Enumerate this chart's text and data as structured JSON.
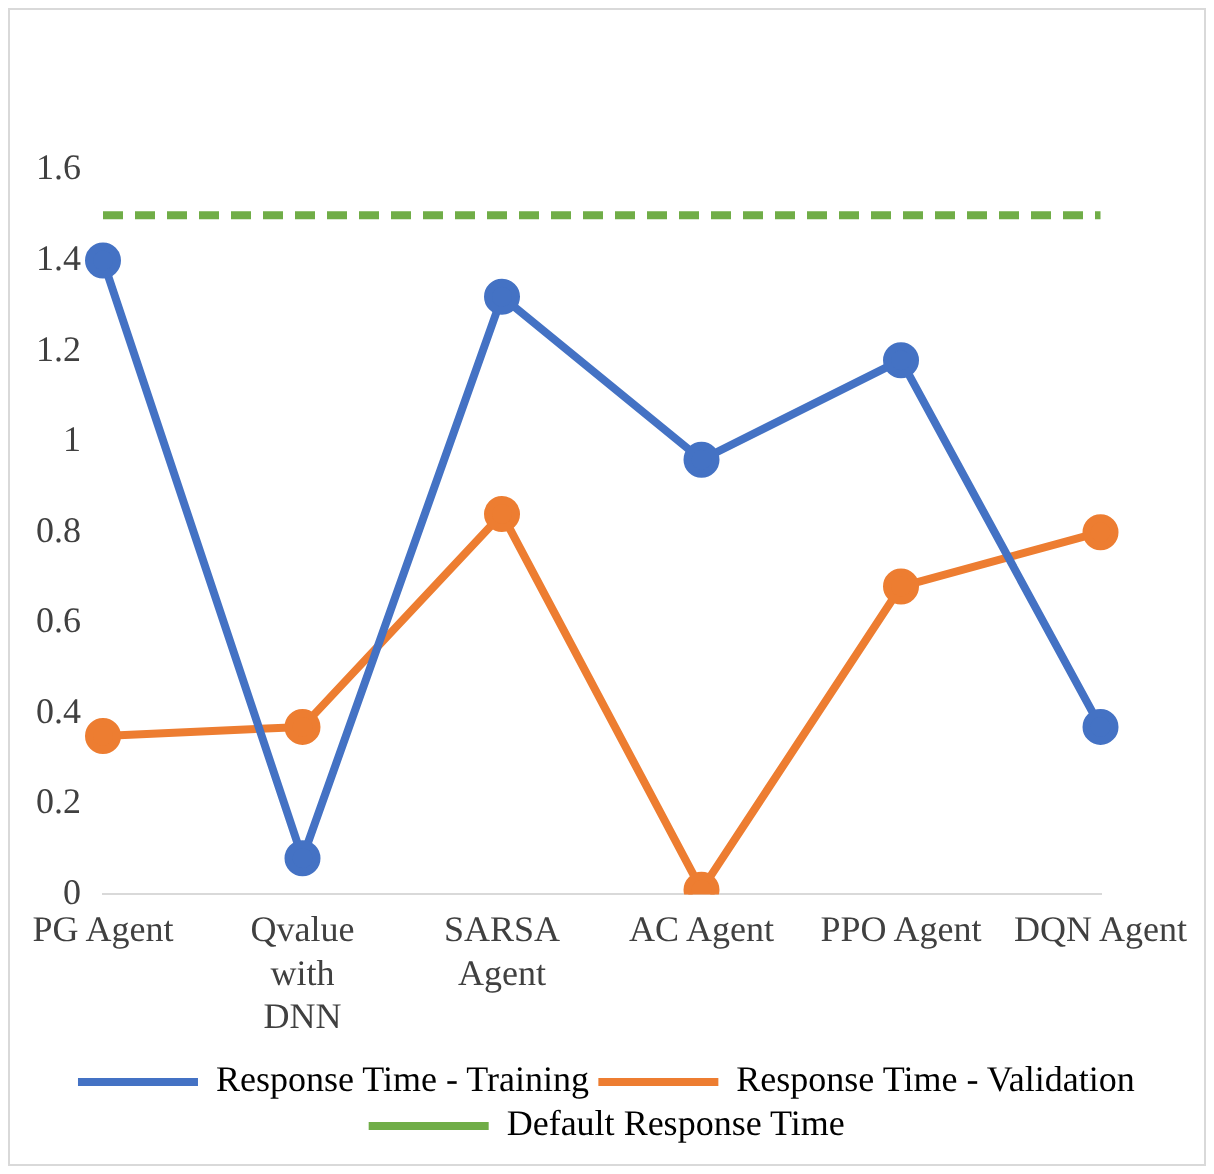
{
  "chart_data": {
    "type": "line",
    "categories": [
      "PG Agent",
      "Qvalue with DNN",
      "SARSA Agent",
      "AC Agent",
      "PPO Agent",
      "DQN Agent"
    ],
    "series": [
      {
        "name": "Response Time - Training",
        "color": "#4472c4",
        "values": [
          1.4,
          0.08,
          1.32,
          0.96,
          1.18,
          0.37
        ],
        "marker": "circle"
      },
      {
        "name": "Response Time - Validation",
        "color": "#ed7d31",
        "values": [
          0.35,
          0.37,
          0.84,
          0.01,
          0.68,
          0.8
        ],
        "marker": "circle"
      },
      {
        "name": "Default Response Time",
        "color": "#70ad47",
        "values": [
          1.5,
          1.5,
          1.5,
          1.5,
          1.5,
          1.5
        ],
        "marker": "none",
        "line_style": "dashed"
      }
    ],
    "ylim": [
      0,
      1.6
    ],
    "yticks": [
      0,
      0.2,
      0.4,
      0.6,
      0.8,
      1,
      1.2,
      1.4,
      1.6
    ],
    "grid": false,
    "legend": "bottom"
  }
}
